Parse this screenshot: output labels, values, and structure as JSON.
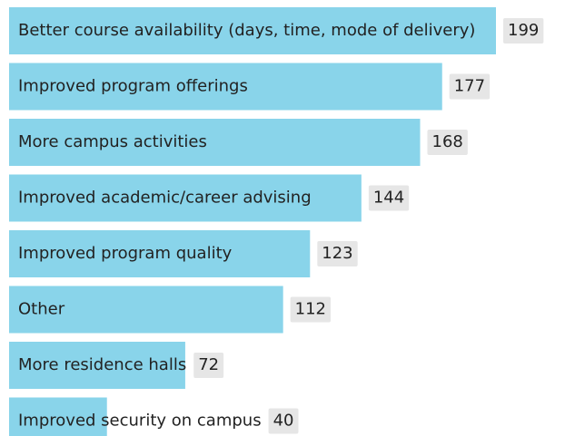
{
  "chart_data": {
    "type": "bar",
    "orientation": "horizontal",
    "categories": [
      "Better course availability (days, time, mode of delivery)",
      "Improved program offerings",
      "More campus activities",
      "Improved academic/career advising",
      "Improved program quality",
      "Other",
      "More residence halls",
      "Improved security on campus"
    ],
    "values": [
      199,
      177,
      168,
      144,
      123,
      112,
      72,
      40
    ],
    "color": "#89d4ea"
  }
}
